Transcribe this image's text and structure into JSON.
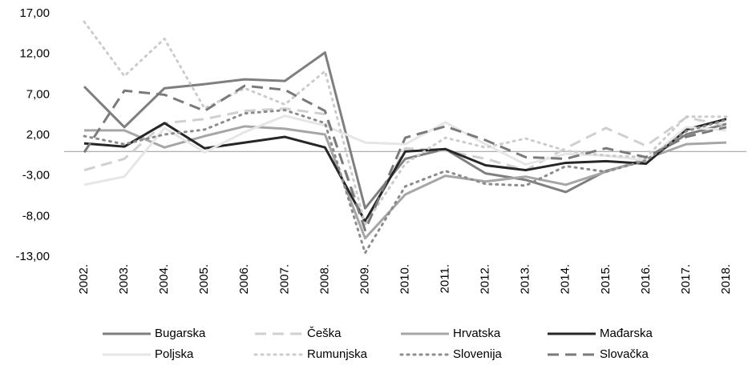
{
  "chart_data": {
    "type": "line",
    "categories": [
      "2002.",
      "2003.",
      "2004.",
      "2005.",
      "2006.",
      "2007.",
      "2008.",
      "2009.",
      "2010.",
      "2011.",
      "2012.",
      "2013.",
      "2014.",
      "2015.",
      "2016.",
      "2017.",
      "2018."
    ],
    "series": [
      {
        "name": "Bugarska",
        "color": "#7f7f7f",
        "dash": "solid",
        "values": [
          8.0,
          3.0,
          7.8,
          8.3,
          8.9,
          8.7,
          12.2,
          -7.0,
          -0.9,
          0.3,
          -2.7,
          -3.5,
          -5.0,
          -2.4,
          -1.1,
          2.1,
          3.4
        ]
      },
      {
        "name": "Češka",
        "color": "#d0d0d0",
        "dash": "dashed",
        "values": [
          -2.3,
          -0.9,
          3.5,
          4.0,
          5.0,
          5.3,
          4.6,
          -9.0,
          0.4,
          0.1,
          -0.9,
          -2.3,
          0.4,
          2.9,
          0.7,
          4.2,
          3.2
        ]
      },
      {
        "name": "Hrvatska",
        "color": "#a6a6a6",
        "dash": "solid",
        "values": [
          2.6,
          2.6,
          0.5,
          1.9,
          3.1,
          2.8,
          2.1,
          -10.7,
          -5.3,
          -3.0,
          -3.7,
          -3.1,
          -4.1,
          -2.5,
          -0.9,
          0.9,
          1.1
        ]
      },
      {
        "name": "Mađarska",
        "color": "#262626",
        "dash": "solid",
        "values": [
          1.0,
          0.6,
          3.5,
          0.4,
          1.1,
          1.8,
          0.5,
          -8.6,
          0.0,
          0.3,
          -1.7,
          -2.3,
          -1.4,
          -1.2,
          -1.5,
          2.7,
          4.0
        ]
      },
      {
        "name": "Poljska",
        "color": "#e6e6e6",
        "dash": "solid",
        "values": [
          -4.1,
          -3.1,
          2.9,
          -0.1,
          2.4,
          4.4,
          3.2,
          1.1,
          0.9,
          3.6,
          0.9,
          -1.6,
          -0.3,
          -0.5,
          -1.1,
          3.0,
          2.6
        ]
      },
      {
        "name": "Rumunjska",
        "color": "#cccccc",
        "dash": "dotted",
        "values": [
          16.0,
          9.3,
          13.9,
          5.3,
          7.8,
          5.8,
          9.9,
          -9.0,
          -1.5,
          1.7,
          0.5,
          1.6,
          0.1,
          -0.5,
          -0.7,
          4.3,
          4.3
        ]
      },
      {
        "name": "Slovenija",
        "color": "#8c8c8c",
        "dash": "dotted",
        "values": [
          1.9,
          0.9,
          2.1,
          2.7,
          4.7,
          5.1,
          3.5,
          -12.5,
          -4.3,
          -2.4,
          -4.0,
          -4.2,
          -1.8,
          -2.5,
          -1.1,
          2.5,
          3.9
        ]
      },
      {
        "name": "Slovačka",
        "color": "#7a7a7a",
        "dash": "dashed",
        "values": [
          -0.1,
          7.5,
          7.0,
          5.0,
          8.1,
          7.6,
          5.0,
          -9.7,
          1.7,
          3.1,
          1.4,
          -0.7,
          -0.9,
          0.4,
          -0.7,
          1.8,
          3.0
        ]
      }
    ],
    "ylim": [
      -13,
      17
    ],
    "yticks": [
      {
        "value": -13,
        "label": "-13,00"
      },
      {
        "value": -8,
        "label": "-8,00"
      },
      {
        "value": -3,
        "label": "-3,00"
      },
      {
        "value": 2,
        "label": "2,00"
      },
      {
        "value": 7,
        "label": "7,00"
      },
      {
        "value": 12,
        "label": "12,00"
      },
      {
        "value": 17,
        "label": "17,00"
      }
    ],
    "grid": false,
    "legend": "bottom"
  }
}
